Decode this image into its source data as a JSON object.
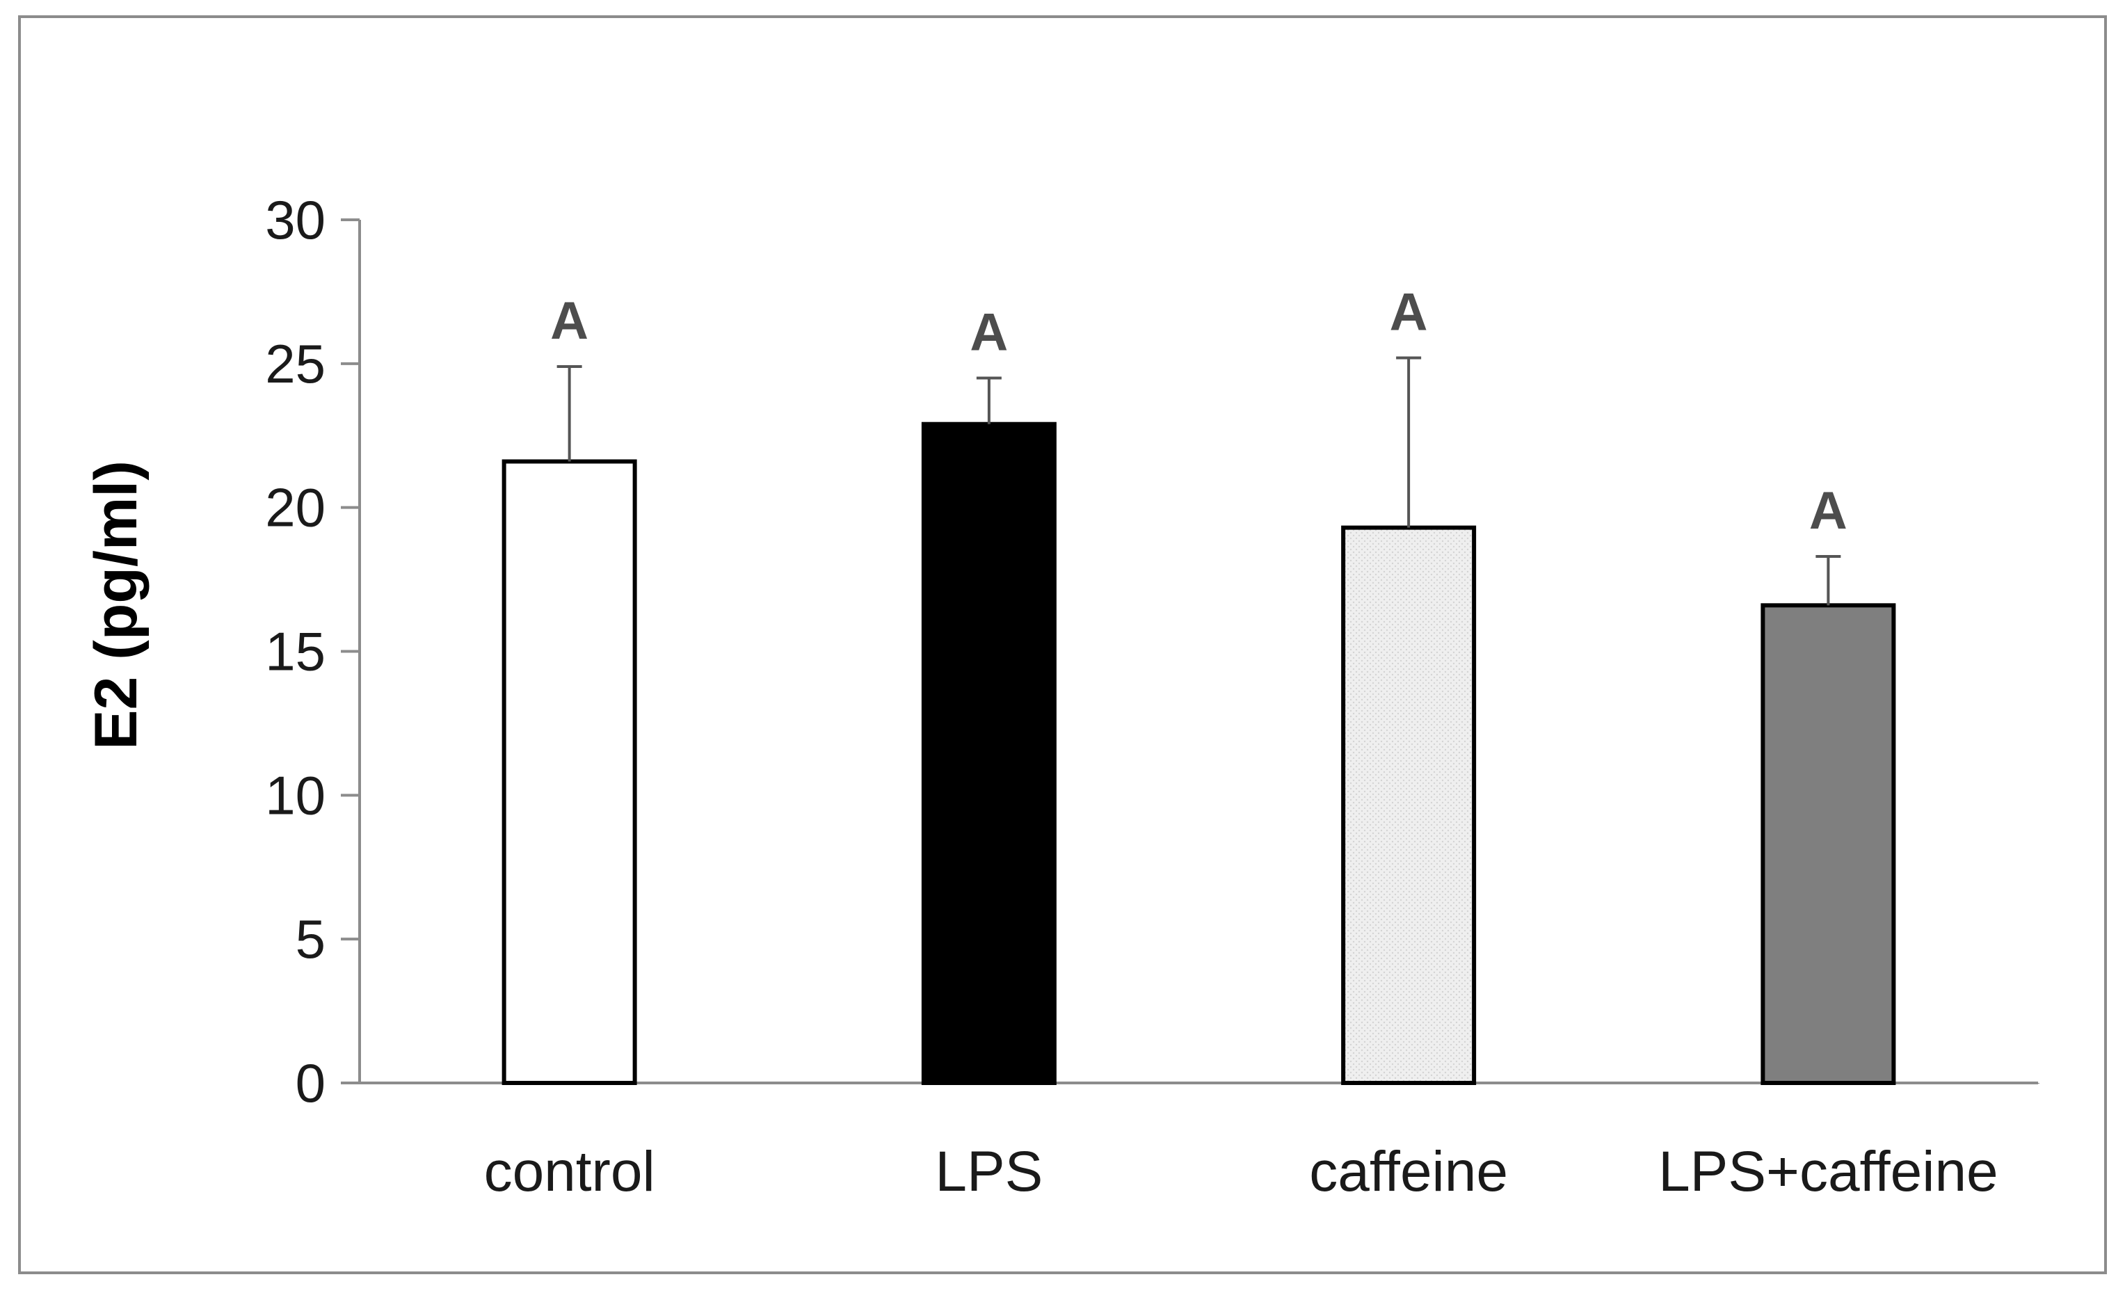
{
  "chart_data": {
    "type": "bar",
    "title": "",
    "xlabel": "",
    "ylabel": "E2 (pg/ml)",
    "ylim": [
      0,
      30
    ],
    "yticks": [
      0,
      5,
      10,
      15,
      20,
      25,
      30
    ],
    "grid": false,
    "categories": [
      "control",
      "LPS",
      "caffeine",
      "LPS+caffeine"
    ],
    "values": [
      21.6,
      22.9,
      19.3,
      16.6
    ],
    "error_upper": [
      3.3,
      1.6,
      5.9,
      1.7
    ],
    "significance_labels": [
      "A",
      "A",
      "A",
      "A"
    ],
    "bar_colors": [
      "#ffffff",
      "#000000",
      "#eeeeee",
      "#7f7f7f"
    ]
  }
}
